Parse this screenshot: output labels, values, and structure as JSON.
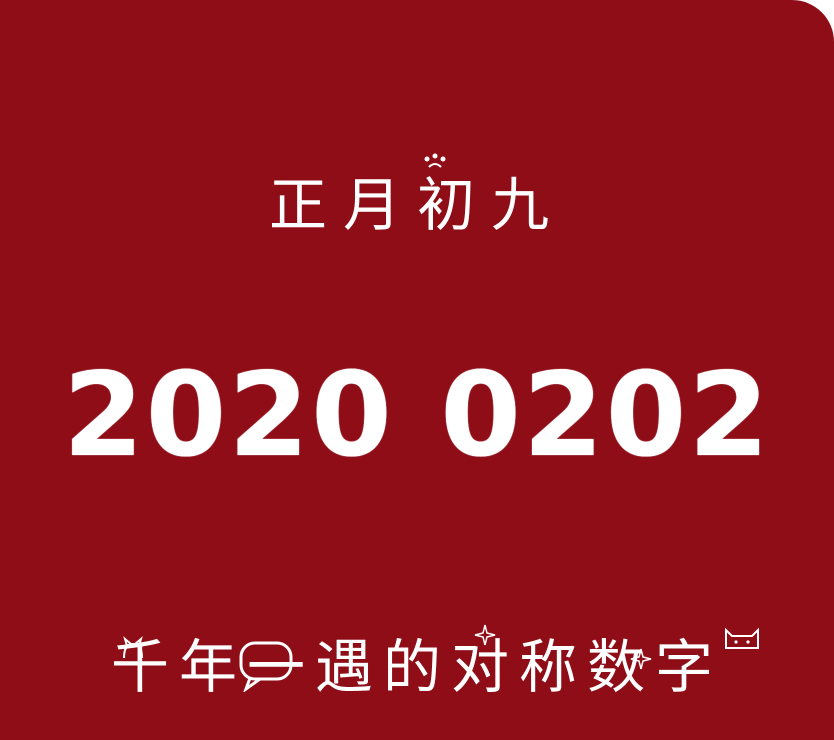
{
  "card": {
    "background": "#8f0d17",
    "text_color": "#ffffff"
  },
  "lunar_date": "正月初九",
  "date_number": "2020 0202",
  "slogan": "千年一遇的对称数字",
  "decorations": {
    "top": "paw-doodle",
    "bottom": [
      "cat-doodle-icon",
      "speech-bubble-icon",
      "sparkle-icon",
      "cat-face-icon"
    ]
  }
}
